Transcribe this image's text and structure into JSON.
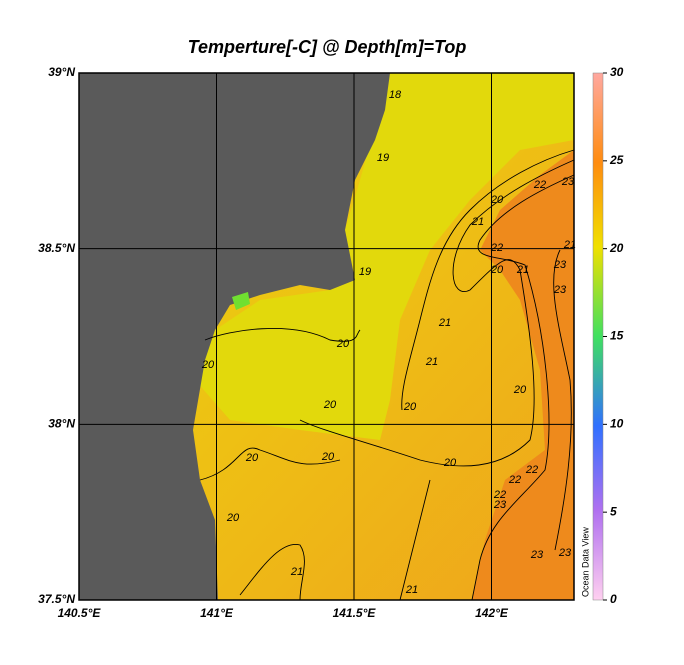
{
  "title": "Temperture[-C] @ Depth[m]=Top",
  "x_axis": {
    "lim": [
      140.5,
      142.3
    ],
    "ticks": [
      {
        "value": 140.5,
        "label": "140.5°E"
      },
      {
        "value": 141,
        "label": "141°E"
      },
      {
        "value": 141.5,
        "label": "141.5°E"
      },
      {
        "value": 142,
        "label": "142°E"
      }
    ]
  },
  "y_axis": {
    "lim": [
      37.5,
      39
    ],
    "ticks": [
      {
        "value": 37.5,
        "label": "37.5°N"
      },
      {
        "value": 38,
        "label": "38°N"
      },
      {
        "value": 38.5,
        "label": "38.5°N"
      },
      {
        "value": 39,
        "label": "39°N"
      }
    ]
  },
  "colorbar": {
    "lim": [
      0,
      30
    ],
    "ticks": [
      0,
      5,
      10,
      15,
      20,
      25,
      30
    ]
  },
  "watermark": "Ocean Data View",
  "contour_labels": [
    18,
    19,
    19,
    20,
    21,
    22,
    23,
    21,
    22,
    20,
    21,
    23,
    23,
    21,
    21,
    20,
    20,
    20,
    20,
    20,
    20,
    20,
    20,
    22,
    22,
    22,
    23,
    20,
    21,
    21,
    23,
    23
  ]
}
